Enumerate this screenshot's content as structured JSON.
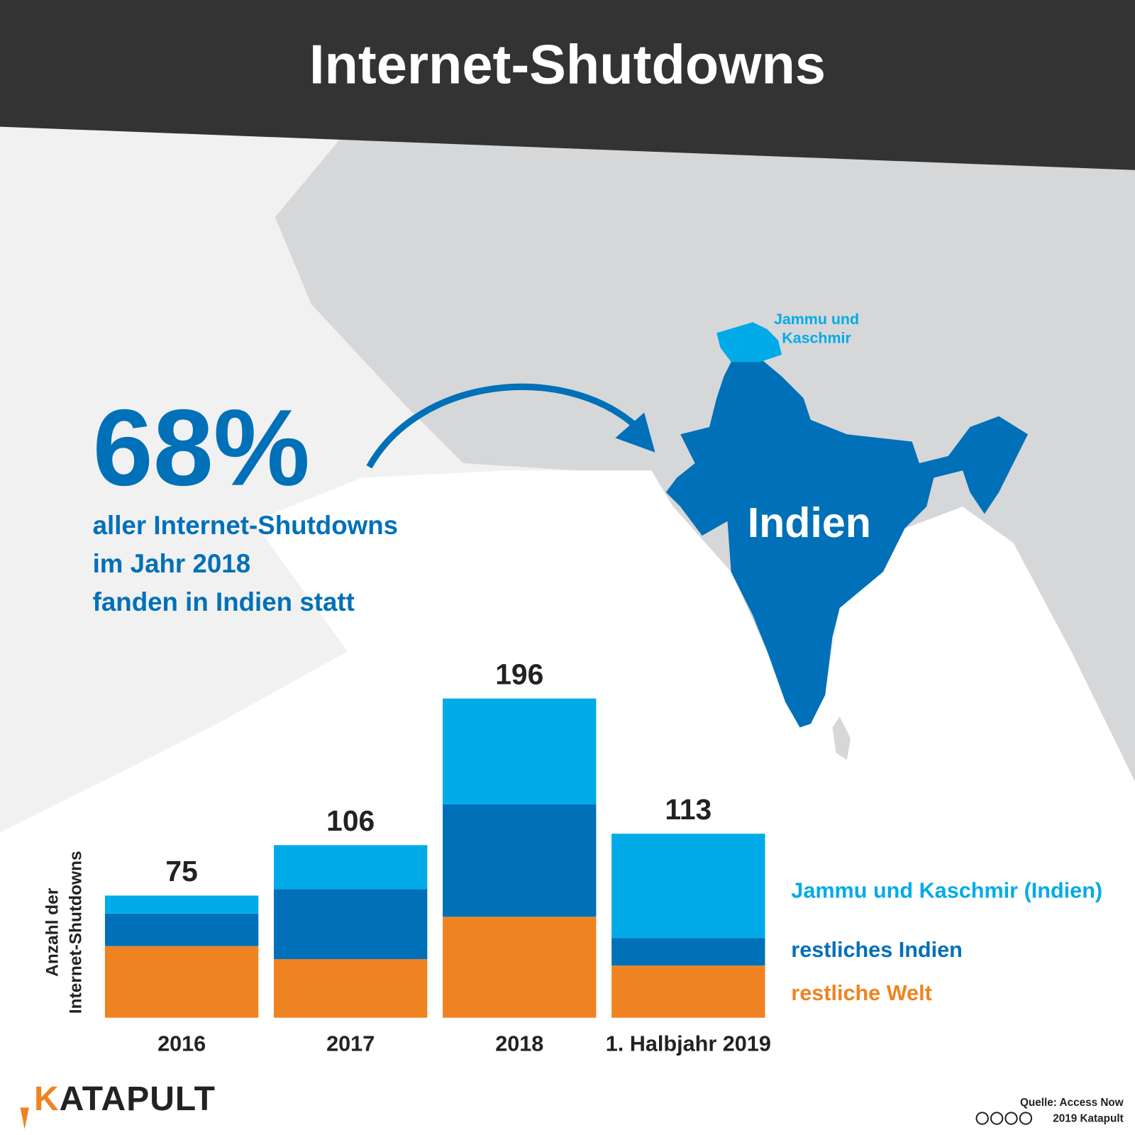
{
  "title": "Internet-Shutdowns",
  "headline": {
    "figure": "68%",
    "lines": [
      "aller Internet-Shutdowns",
      "im Jahr 2018",
      "fanden in Indien statt"
    ]
  },
  "map": {
    "country": "Indien",
    "region": [
      "Jammu und",
      "Kaschmir"
    ]
  },
  "chart_data": {
    "type": "bar",
    "stacked": true,
    "ylabel": [
      "Anzahl der",
      "Internet-Shutdowns"
    ],
    "categories": [
      "2016",
      "2017",
      "2018",
      "1. Halbjahr 2019"
    ],
    "series": [
      {
        "name": "restliche Welt",
        "color": "#f08321",
        "values": [
          44,
          36,
          62,
          32
        ]
      },
      {
        "name": "restliches Indien",
        "color": "#0070b8",
        "values": [
          20,
          43,
          69,
          17
        ]
      },
      {
        "name": "Jammu und Kaschmir (Indien)",
        "color": "#00abe8",
        "values": [
          11,
          27,
          65,
          64
        ]
      }
    ],
    "totals": [
      75,
      106,
      196,
      113
    ]
  },
  "footer": {
    "brand": "KATAPULT",
    "source": "Quelle: Access Now",
    "copyright": "2019 Katapult"
  }
}
